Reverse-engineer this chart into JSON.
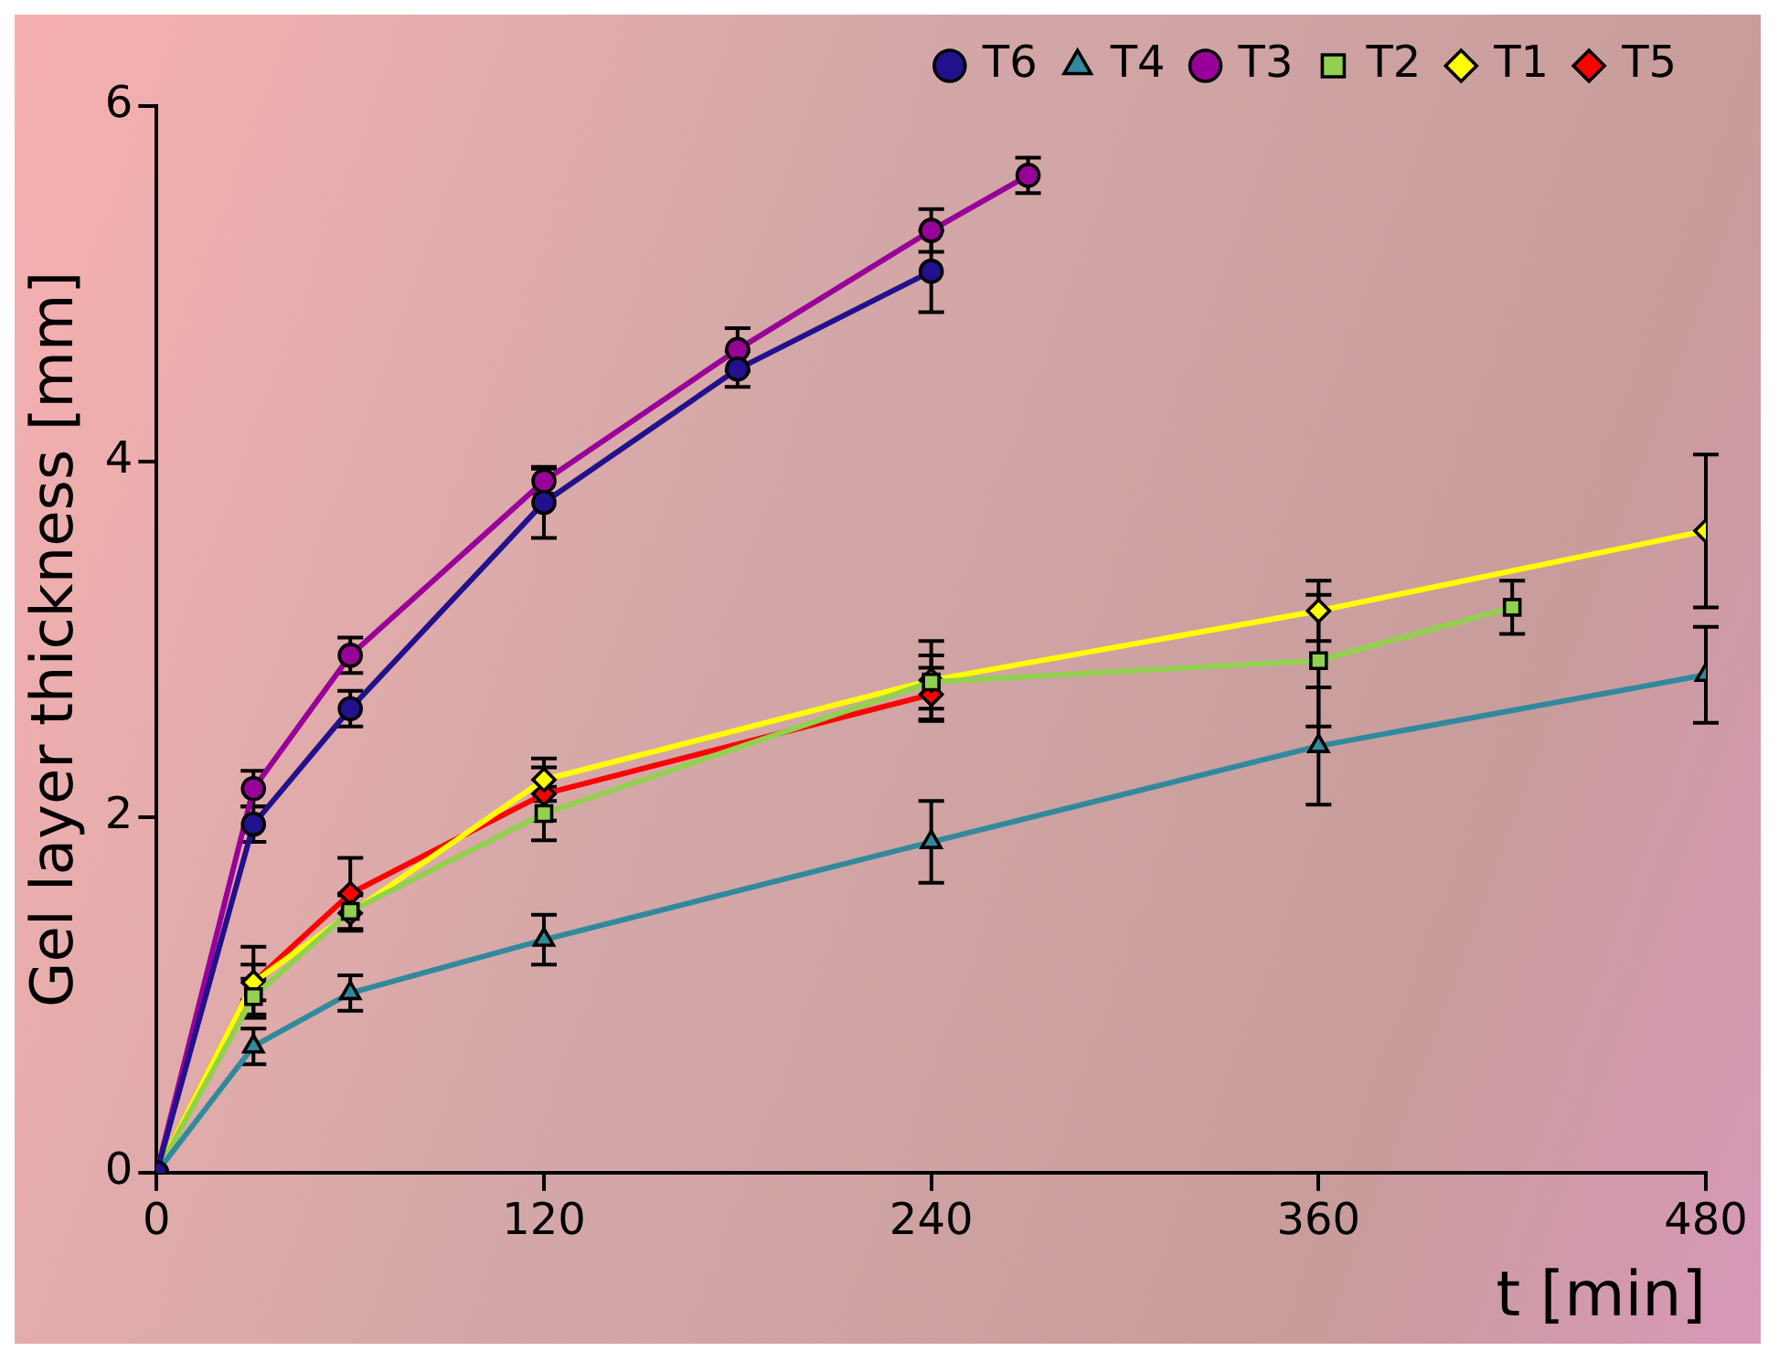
{
  "chart_data": {
    "type": "line",
    "xlabel": "t [min]",
    "ylabel": "Gel layer thickness [mm]",
    "xlim": [
      0,
      480
    ],
    "xticks": [
      0,
      120,
      240,
      360,
      480
    ],
    "ylim": [
      0,
      6
    ],
    "yticks": [
      0,
      2,
      4,
      6
    ],
    "grid": false,
    "legend": "top right",
    "line_style": "solid",
    "series": [
      {
        "name": "T6",
        "color": "#22118c",
        "marker": "circle",
        "x": [
          0,
          30,
          60,
          120,
          180,
          240
        ],
        "values": [
          0,
          1.96,
          2.61,
          3.77,
          4.52,
          5.07
        ],
        "errors": [
          null,
          0.1,
          0.1,
          0.2,
          0.1,
          0.23
        ]
      },
      {
        "name": "T4",
        "color": "#318a9c",
        "marker": "triangle",
        "x": [
          0,
          30,
          60,
          120,
          240,
          360,
          480
        ],
        "values": [
          0,
          0.71,
          1.01,
          1.31,
          1.86,
          2.4,
          2.8
        ],
        "errors": [
          null,
          0.1,
          0.1,
          0.14,
          0.23,
          0.33,
          0.27
        ]
      },
      {
        "name": "T3",
        "color": "#990099",
        "marker": "circle",
        "x": [
          0,
          30,
          60,
          120,
          180,
          240,
          270
        ],
        "values": [
          0,
          2.16,
          2.91,
          3.89,
          4.63,
          5.3,
          5.61
        ],
        "errors": [
          null,
          0.1,
          0.1,
          0.07,
          0.12,
          0.12,
          0.1
        ]
      },
      {
        "name": "T2",
        "color": "#92d050",
        "marker": "square",
        "x": [
          0,
          30,
          60,
          120,
          240,
          360,
          420
        ],
        "values": [
          0,
          0.99,
          1.47,
          2.02,
          2.76,
          2.88,
          3.18
        ],
        "errors": [
          null,
          0.1,
          0.1,
          0.15,
          0.15,
          0.37,
          0.15
        ]
      },
      {
        "name": "T1",
        "color": "#ffff00",
        "marker": "diamond",
        "x": [
          0,
          30,
          60,
          120,
          240,
          360,
          480
        ],
        "values": [
          0,
          1.07,
          1.46,
          2.21,
          2.77,
          3.16,
          3.61
        ],
        "errors": [
          null,
          0.1,
          0.1,
          0.12,
          0.22,
          0.17,
          0.43
        ]
      },
      {
        "name": "T5",
        "color": "#ff0000",
        "marker": "diamond",
        "x": [
          0,
          30,
          60,
          120,
          240
        ],
        "values": [
          0,
          1.07,
          1.57,
          2.13,
          2.69
        ],
        "errors": [
          null,
          0.2,
          0.2,
          0.15,
          0.15
        ]
      }
    ]
  }
}
